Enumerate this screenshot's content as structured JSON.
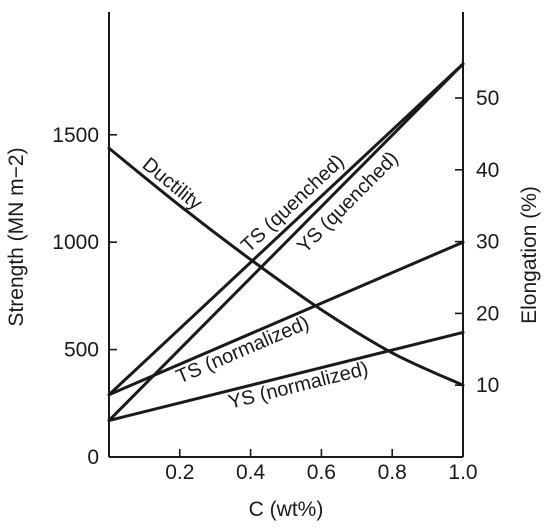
{
  "chart_data": {
    "type": "line",
    "xlabel": "C (wt%)",
    "ylabel_left": "Strength (MN m−2)",
    "ylabel_right": "Elongation (%)",
    "xlim": [
      0,
      1.0
    ],
    "ylim_left": [
      0,
      2000
    ],
    "ylim_right": [
      0,
      62
    ],
    "x_ticks": [
      0.2,
      0.4,
      0.6,
      0.8,
      1.0
    ],
    "x_tick_labels": [
      "0.2",
      "0.4",
      "0.6",
      "0.8",
      "1.0"
    ],
    "y_left_ticks": [
      0,
      500,
      1000,
      1500
    ],
    "y_left_tick_labels": [
      "0",
      "500",
      "1000",
      "1500"
    ],
    "y_right_ticks": [
      10,
      20,
      30,
      40,
      50
    ],
    "y_right_tick_labels": [
      "10",
      "20",
      "30",
      "40",
      "50"
    ],
    "grid": false,
    "legend": "none",
    "series": [
      {
        "label": "TS (quenched)",
        "axis": "left",
        "x": [
          0,
          1.0
        ],
        "y": [
          290,
          1830
        ]
      },
      {
        "label": "YS (quenched)",
        "axis": "left",
        "x": [
          0,
          1.0
        ],
        "y": [
          170,
          1830
        ]
      },
      {
        "label": "TS (normalized)",
        "axis": "left",
        "x": [
          0,
          1.0
        ],
        "y": [
          290,
          1000
        ]
      },
      {
        "label": "YS (normalized)",
        "axis": "left",
        "x": [
          0,
          1.0
        ],
        "y": [
          170,
          580
        ]
      },
      {
        "label": "Ductility",
        "axis": "right",
        "x": [
          0,
          0.2,
          0.4,
          0.6,
          0.8,
          1.0
        ],
        "y": [
          43,
          35,
          27.5,
          20.5,
          14.5,
          10
        ]
      }
    ]
  }
}
